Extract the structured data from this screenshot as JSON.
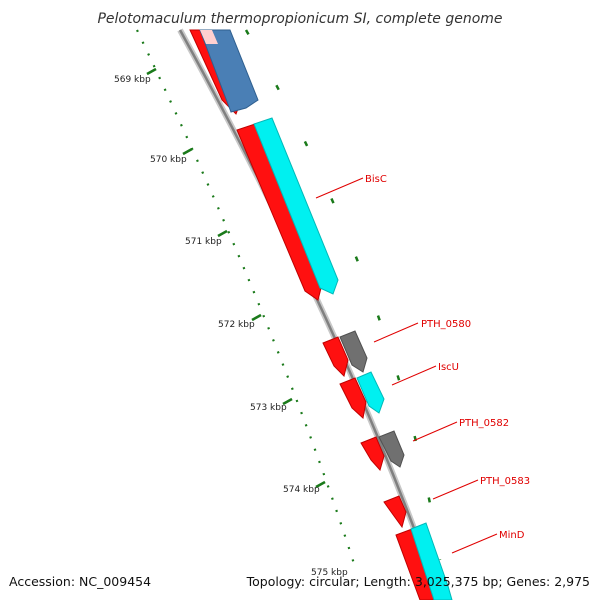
{
  "title": "Pelotomaculum thermopropionicum SI, complete genome",
  "footer": {
    "accession": "Accession: NC_009454",
    "topology": "Topology: circular; Length: 3,025,375 bp; Genes: 2,975"
  },
  "ticks": [
    {
      "label": "569 kbp"
    },
    {
      "label": "570 kbp"
    },
    {
      "label": "571 kbp"
    },
    {
      "label": "572 kbp"
    },
    {
      "label": "573 kbp"
    },
    {
      "label": "574 kbp"
    },
    {
      "label": "575 kbp"
    }
  ],
  "gene_labels": [
    {
      "name": "BisC"
    },
    {
      "name": "PTH_0580"
    },
    {
      "name": "IscU"
    },
    {
      "name": "PTH_0582"
    },
    {
      "name": "PTH_0583"
    },
    {
      "name": "MinD"
    }
  ],
  "colors": {
    "backbone": "#8c8c8c",
    "gene_red": "#ff0000",
    "gene_blue": "#4a7fb5",
    "gene_cyan": "#00f0f0",
    "gene_gray": "#6f6f6f",
    "ticks_green": "#1a7a1a",
    "label_red": "#e00000"
  }
}
